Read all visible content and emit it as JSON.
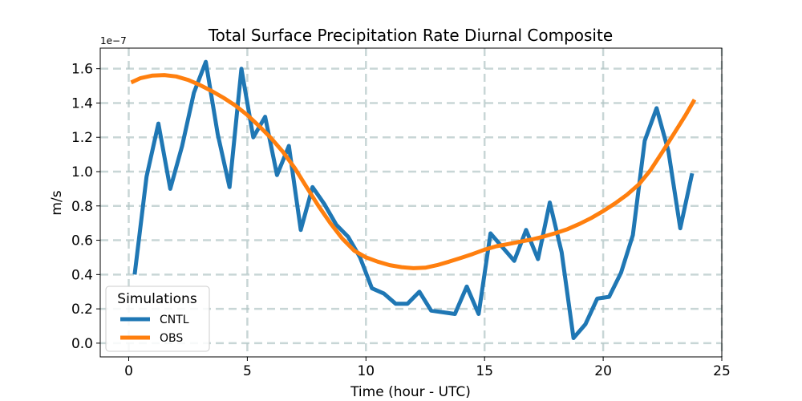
{
  "chart_data": {
    "type": "line",
    "title": "Total Surface Precipitation Rate Diurnal Composite",
    "xlabel": "Time (hour - UTC)",
    "ylabel": "m/s",
    "y_offset_label": "1e−7",
    "xlim": [
      -1.2,
      25
    ],
    "ylim": [
      -0.08,
      1.72
    ],
    "x_ticks": [
      0,
      5,
      10,
      15,
      20,
      25
    ],
    "x_tick_labels": [
      "0",
      "5",
      "10",
      "15",
      "20",
      "25"
    ],
    "y_ticks": [
      0.0,
      0.2,
      0.4,
      0.6,
      0.8,
      1.0,
      1.2,
      1.4,
      1.6
    ],
    "y_tick_labels": [
      "0.0",
      "0.2",
      "0.4",
      "0.6",
      "0.8",
      "1.0",
      "1.2",
      "1.4",
      "1.6"
    ],
    "grid": true,
    "legend": {
      "title": "Simulations",
      "position": "lower-left"
    },
    "series": [
      {
        "name": "CNTL",
        "color": "#1f77b4",
        "x": [
          0.25,
          0.75,
          1.25,
          1.75,
          2.25,
          2.75,
          3.25,
          3.75,
          4.25,
          4.75,
          5.25,
          5.75,
          6.25,
          6.75,
          7.25,
          7.75,
          8.25,
          8.75,
          9.25,
          9.75,
          10.25,
          10.75,
          11.25,
          11.75,
          12.25,
          12.75,
          13.25,
          13.75,
          14.25,
          14.75,
          15.25,
          15.75,
          16.25,
          16.75,
          17.25,
          17.75,
          18.25,
          18.75,
          19.25,
          19.75,
          20.25,
          20.75,
          21.25,
          21.75,
          22.25,
          22.75,
          23.25,
          23.75
        ],
        "values": [
          0.4,
          0.97,
          1.28,
          0.9,
          1.15,
          1.46,
          1.64,
          1.22,
          0.91,
          1.6,
          1.2,
          1.32,
          0.98,
          1.15,
          0.66,
          0.91,
          0.81,
          0.69,
          0.62,
          0.5,
          0.32,
          0.29,
          0.23,
          0.23,
          0.3,
          0.19,
          0.18,
          0.17,
          0.33,
          0.17,
          0.64,
          0.56,
          0.48,
          0.66,
          0.49,
          0.82,
          0.53,
          0.03,
          0.11,
          0.26,
          0.27,
          0.41,
          0.63,
          1.18,
          1.37,
          1.12,
          0.67,
          0.99
        ]
      },
      {
        "name": "OBS",
        "color": "#ff7f0e",
        "x": [
          0.1,
          0.5,
          1.0,
          1.5,
          2.0,
          2.5,
          3.0,
          3.5,
          4.0,
          4.5,
          5.0,
          5.5,
          6.0,
          6.5,
          7.0,
          7.5,
          8.0,
          8.5,
          9.0,
          9.5,
          10.0,
          10.5,
          11.0,
          11.5,
          12.0,
          12.5,
          13.0,
          13.5,
          14.0,
          14.5,
          15.0,
          15.5,
          16.0,
          16.5,
          17.0,
          17.5,
          18.0,
          18.5,
          19.0,
          19.5,
          20.0,
          20.5,
          21.0,
          21.5,
          22.0,
          22.5,
          23.0,
          23.5,
          23.85
        ],
        "values": [
          1.52,
          1.545,
          1.56,
          1.563,
          1.555,
          1.535,
          1.505,
          1.47,
          1.43,
          1.385,
          1.33,
          1.265,
          1.195,
          1.115,
          1.02,
          0.91,
          0.8,
          0.7,
          0.61,
          0.54,
          0.5,
          0.475,
          0.455,
          0.443,
          0.437,
          0.44,
          0.455,
          0.475,
          0.497,
          0.52,
          0.545,
          0.565,
          0.578,
          0.592,
          0.605,
          0.622,
          0.642,
          0.665,
          0.695,
          0.73,
          0.77,
          0.815,
          0.865,
          0.925,
          1.01,
          1.115,
          1.225,
          1.335,
          1.42
        ]
      }
    ]
  }
}
